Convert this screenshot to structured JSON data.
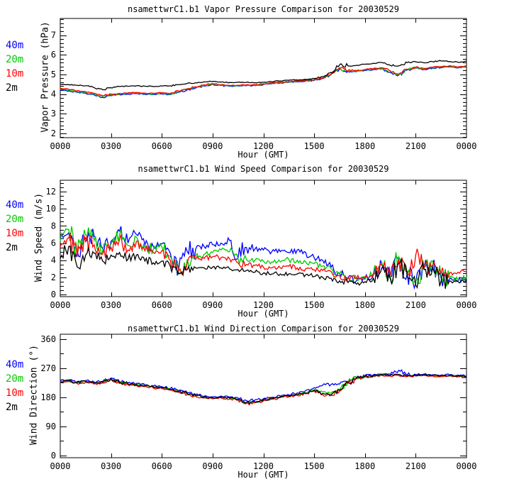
{
  "page": {
    "background": "#ffffff",
    "text_color": "#000000"
  },
  "legend_colors": {
    "blue": "#0000ff",
    "green": "#00cc00",
    "red": "#ff0000",
    "black": "#000000"
  },
  "chart_data": [
    {
      "type": "line",
      "title": "nsamettwrC1.b1 Vapor Pressure Comparison for 20030529",
      "xlabel": "Hour (GMT)",
      "ylabel": "Vapor Pressure (hPa)",
      "x_ticks": [
        "0000",
        "0300",
        "0600",
        "0900",
        "1200",
        "1500",
        "1800",
        "2100",
        "0000"
      ],
      "x_range_hours": [
        0,
        24
      ],
      "y_ticks": [
        2,
        3,
        4,
        5,
        6,
        7
      ],
      "y_range": [
        1.78,
        7.85
      ],
      "y_minor_interval": 0.2,
      "grid": false,
      "legend_position": "outside-left",
      "sample_interval_hours": 0.5,
      "noise": {
        "base": 0.015,
        "scale": 0.25
      },
      "legend": [
        {
          "label": "40m",
          "color": "#0000ff"
        },
        {
          "label": "20m",
          "color": "#00cc00"
        },
        {
          "label": "10m",
          "color": "#ff0000"
        },
        {
          "label": "2m",
          "color": "#000000"
        }
      ],
      "series": [
        {
          "name": "40m",
          "color": "#0000ff",
          "values": [
            4.2,
            4.16,
            4.09,
            4.04,
            3.96,
            3.83,
            3.92,
            3.97,
            4.0,
            4.02,
            3.99,
            3.98,
            4.01,
            3.97,
            4.1,
            4.21,
            4.31,
            4.41,
            4.5,
            4.43,
            4.4,
            4.41,
            4.43,
            4.43,
            4.48,
            4.53,
            4.57,
            4.6,
            4.63,
            4.66,
            4.69,
            4.79,
            4.99,
            5.29,
            5.15,
            5.14,
            5.2,
            5.25,
            5.29,
            5.1,
            4.96,
            5.22,
            5.32,
            5.26,
            5.32,
            5.35,
            5.39,
            5.33,
            5.39
          ]
        },
        {
          "name": "20m",
          "color": "#00cc00",
          "values": [
            4.24,
            4.2,
            4.13,
            4.08,
            4.0,
            3.88,
            3.96,
            4.0,
            4.03,
            4.05,
            4.02,
            4.01,
            4.04,
            4.0,
            4.13,
            4.24,
            4.34,
            4.44,
            4.52,
            4.45,
            4.42,
            4.43,
            4.45,
            4.45,
            4.5,
            4.55,
            4.59,
            4.62,
            4.65,
            4.68,
            4.71,
            4.81,
            5.01,
            5.31,
            5.17,
            5.16,
            5.22,
            5.27,
            5.31,
            5.14,
            4.99,
            5.24,
            5.34,
            5.28,
            5.34,
            5.37,
            5.41,
            5.35,
            5.41
          ]
        },
        {
          "name": "10m",
          "color": "#ff0000",
          "values": [
            4.28,
            4.24,
            4.17,
            4.12,
            4.04,
            3.92,
            4.0,
            4.03,
            4.06,
            4.08,
            4.05,
            4.04,
            4.07,
            4.03,
            4.16,
            4.27,
            4.37,
            4.47,
            4.54,
            4.47,
            4.44,
            4.45,
            4.47,
            4.47,
            4.52,
            4.57,
            4.61,
            4.64,
            4.67,
            4.7,
            4.73,
            4.83,
            5.03,
            5.34,
            5.2,
            5.19,
            5.25,
            5.3,
            5.34,
            5.18,
            5.02,
            5.27,
            5.37,
            5.31,
            5.37,
            5.4,
            5.44,
            5.38,
            5.44
          ]
        },
        {
          "name": "2m",
          "color": "#000000",
          "values": [
            4.5,
            4.48,
            4.45,
            4.42,
            4.33,
            4.22,
            4.32,
            4.38,
            4.4,
            4.42,
            4.4,
            4.39,
            4.41,
            4.42,
            4.49,
            4.54,
            4.58,
            4.62,
            4.65,
            4.61,
            4.59,
            4.6,
            4.6,
            4.58,
            4.6,
            4.63,
            4.67,
            4.7,
            4.72,
            4.75,
            4.79,
            4.89,
            5.1,
            5.48,
            5.43,
            5.47,
            5.52,
            5.57,
            5.61,
            5.46,
            5.44,
            5.6,
            5.64,
            5.59,
            5.65,
            5.69,
            5.66,
            5.62,
            5.67
          ]
        }
      ]
    },
    {
      "type": "line",
      "title": "nsamettwrC1.b1 Wind Speed Comparison for 20030529",
      "xlabel": "Hour (GMT)",
      "ylabel": "Wind Speed (m/s)",
      "x_ticks": [
        "0000",
        "0300",
        "0600",
        "0900",
        "1200",
        "1500",
        "1800",
        "2100",
        "0000"
      ],
      "x_range_hours": [
        0,
        24
      ],
      "y_ticks": [
        0,
        2,
        4,
        6,
        8,
        10,
        12
      ],
      "y_range": [
        -0.25,
        13.33
      ],
      "y_minor_interval": 0.5,
      "grid": false,
      "legend_position": "outside-left",
      "sample_interval_hours": 0.5,
      "noise": {
        "base": 0.2,
        "scale": 0.5
      },
      "legend": [
        {
          "label": "40m",
          "color": "#0000ff"
        },
        {
          "label": "20m",
          "color": "#00cc00"
        },
        {
          "label": "10m",
          "color": "#ff0000"
        },
        {
          "label": "2m",
          "color": "#000000"
        }
      ],
      "series": [
        {
          "name": "40m",
          "color": "#0000ff",
          "values": [
            6.5,
            7.2,
            5.0,
            6.6,
            6.8,
            5.4,
            6.2,
            7.4,
            6.0,
            7.0,
            5.8,
            5.6,
            5.9,
            4.8,
            3.0,
            5.0,
            5.3,
            5.6,
            5.8,
            6.0,
            6.3,
            4.2,
            5.5,
            5.3,
            5.2,
            5.0,
            5.0,
            4.9,
            5.2,
            4.9,
            4.3,
            4.0,
            3.2,
            2.5,
            1.9,
            1.6,
            1.8,
            2.3,
            3.6,
            2.1,
            4.2,
            2.4,
            1.3,
            3.1,
            3.4,
            1.9,
            1.8,
            1.6,
            1.9
          ]
        },
        {
          "name": "20m",
          "color": "#00cc00",
          "values": [
            6.2,
            7.6,
            4.8,
            6.9,
            6.3,
            5.1,
            5.9,
            7.0,
            5.7,
            6.7,
            5.5,
            5.3,
            5.6,
            4.4,
            2.6,
            4.1,
            4.5,
            4.7,
            4.9,
            5.2,
            5.0,
            4.2,
            4.1,
            4.0,
            3.9,
            3.8,
            3.8,
            4.1,
            4.0,
            3.8,
            3.6,
            3.3,
            3.0,
            2.4,
            2.0,
            1.8,
            2.0,
            2.5,
            3.7,
            2.1,
            4.4,
            2.5,
            1.4,
            3.3,
            3.9,
            2.1,
            1.9,
            1.7,
            2.0
          ]
        },
        {
          "name": "10m",
          "color": "#ff0000",
          "values": [
            5.6,
            6.6,
            4.4,
            6.1,
            5.8,
            4.7,
            5.5,
            6.4,
            5.2,
            6.2,
            5.1,
            4.9,
            5.1,
            4.0,
            2.8,
            3.7,
            4.1,
            4.2,
            4.4,
            4.3,
            4.2,
            3.7,
            3.5,
            3.4,
            3.2,
            3.1,
            3.1,
            3.3,
            3.1,
            3.0,
            2.9,
            2.8,
            2.7,
            2.2,
            2.0,
            1.9,
            2.1,
            2.4,
            3.4,
            2.2,
            4.1,
            2.7,
            4.6,
            3.1,
            3.4,
            2.5,
            2.5,
            2.6,
            2.7
          ]
        },
        {
          "name": "2m",
          "color": "#000000",
          "values": [
            4.2,
            5.6,
            3.2,
            4.6,
            4.8,
            3.9,
            4.6,
            4.9,
            4.1,
            4.6,
            3.9,
            3.7,
            3.9,
            3.3,
            2.4,
            2.9,
            3.1,
            3.1,
            3.2,
            3.1,
            3.0,
            2.9,
            2.8,
            2.6,
            2.5,
            2.4,
            2.4,
            2.4,
            2.4,
            2.3,
            2.1,
            2.0,
            1.9,
            1.6,
            1.4,
            1.2,
            1.5,
            1.9,
            3.1,
            1.8,
            3.6,
            2.1,
            1.1,
            2.9,
            3.1,
            1.6,
            1.6,
            1.5,
            1.7
          ]
        }
      ]
    },
    {
      "type": "line",
      "title": "nsamettwrC1.b1 Wind Direction Comparison for 20030529",
      "xlabel": "Hour (GMT)",
      "ylabel": "Wind Direction (°)",
      "x_ticks": [
        "0000",
        "0300",
        "0600",
        "0900",
        "1200",
        "1500",
        "1800",
        "2100",
        "0000"
      ],
      "x_range_hours": [
        0,
        24
      ],
      "y_ticks": [
        0,
        90,
        180,
        270,
        360
      ],
      "y_range": [
        -6.6,
        375.3
      ],
      "y_minor_interval": 45,
      "grid": false,
      "legend_position": "outside-left",
      "sample_interval_hours": 0.5,
      "noise": {
        "base": 2.2,
        "scale": 0.3
      },
      "legend": [
        {
          "label": "40m",
          "color": "#0000ff"
        },
        {
          "label": "20m",
          "color": "#00cc00"
        },
        {
          "label": "10m",
          "color": "#ff0000"
        },
        {
          "label": "2m",
          "color": "#000000"
        }
      ],
      "series": [
        {
          "name": "40m",
          "color": "#0000ff",
          "values": [
            231,
            234,
            229,
            232,
            227,
            230,
            240,
            229,
            225,
            223,
            219,
            215,
            213,
            208,
            201,
            195,
            189,
            184,
            182,
            184,
            181,
            178,
            170,
            172,
            176,
            180,
            184,
            188,
            194,
            201,
            210,
            218,
            220,
            221,
            230,
            242,
            247,
            250,
            252,
            251,
            264,
            249,
            251,
            252,
            250,
            249,
            250,
            249,
            246
          ]
        },
        {
          "name": "20m",
          "color": "#00cc00",
          "values": [
            227,
            231,
            225,
            229,
            223,
            226,
            237,
            225,
            221,
            219,
            215,
            211,
            209,
            204,
            197,
            191,
            185,
            180,
            178,
            180,
            177,
            173,
            163,
            165,
            171,
            176,
            181,
            184,
            188,
            193,
            202,
            196,
            193,
            204,
            227,
            239,
            244,
            246,
            249,
            247,
            250,
            245,
            247,
            249,
            247,
            246,
            247,
            245,
            242
          ]
        },
        {
          "name": "10m",
          "color": "#ff0000",
          "values": [
            225,
            229,
            223,
            227,
            221,
            224,
            235,
            223,
            219,
            217,
            213,
            209,
            207,
            202,
            195,
            189,
            183,
            178,
            176,
            178,
            175,
            171,
            161,
            163,
            169,
            174,
            179,
            182,
            186,
            191,
            200,
            189,
            186,
            199,
            224,
            238,
            243,
            245,
            248,
            246,
            248,
            244,
            246,
            248,
            246,
            245,
            246,
            244,
            241
          ]
        },
        {
          "name": "2m",
          "color": "#000000",
          "values": [
            228,
            232,
            226,
            230,
            224,
            227,
            238,
            226,
            222,
            220,
            216,
            212,
            210,
            205,
            198,
            192,
            186,
            181,
            179,
            181,
            178,
            174,
            164,
            166,
            172,
            177,
            182,
            185,
            189,
            194,
            203,
            192,
            188,
            202,
            226,
            240,
            245,
            247,
            250,
            248,
            251,
            246,
            248,
            250,
            248,
            247,
            248,
            246,
            243
          ]
        }
      ]
    }
  ]
}
